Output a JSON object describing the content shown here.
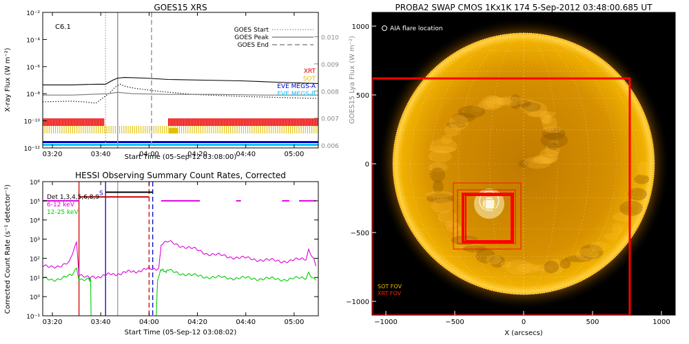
{
  "chart_data": [
    {
      "type": "line",
      "title": "GOES15 XRS",
      "xlabel": "Start Time (05-Sep-12 03:08:00)",
      "ylabel": "X-ray Flux (W m⁻²)",
      "ylabel_right": "GOES15 Lya Flux (W m⁻²)",
      "annotation": "C6.1",
      "xlim": [
        8,
        122
      ],
      "xticks": [
        {
          "v": 12,
          "label": "03:20"
        },
        {
          "v": 32,
          "label": "03:40"
        },
        {
          "v": 52,
          "label": "04:00"
        },
        {
          "v": 72,
          "label": "04:20"
        },
        {
          "v": 92,
          "label": "04:40"
        },
        {
          "v": 112,
          "label": "05:00"
        }
      ],
      "ylog": true,
      "ylim_exp": [
        -12,
        -2
      ],
      "yticks": [
        {
          "e": -12,
          "label": "10⁻¹²"
        },
        {
          "e": -10,
          "label": "10⁻¹⁰"
        },
        {
          "e": -8,
          "label": "10⁻⁸"
        },
        {
          "e": -6,
          "label": "10⁻⁶"
        },
        {
          "e": -4,
          "label": "10⁻⁴"
        },
        {
          "e": -2,
          "label": "10⁻²"
        }
      ],
      "yticks_right": [
        {
          "e": -11.8,
          "label": "0.006"
        },
        {
          "e": -9.8,
          "label": "0.007"
        },
        {
          "e": -7.8,
          "label": "0.008"
        },
        {
          "e": -5.8,
          "label": "0.009"
        },
        {
          "e": -3.8,
          "label": "0.010"
        }
      ],
      "legend": [
        {
          "label": "GOES Start",
          "style": "dotted",
          "color": "#888888"
        },
        {
          "label": "GOES Peak",
          "style": "solid",
          "color": "#888888"
        },
        {
          "label": "GOES End",
          "style": "dashed",
          "color": "#888888"
        }
      ],
      "instrument_labels": [
        {
          "label": "XRT",
          "color": "#dd0000"
        },
        {
          "label": "SOT",
          "color": "#e0c000"
        },
        {
          "label": "EVE MEGS-A",
          "color": "#0000cc"
        },
        {
          "label": "EVE MEGS-B",
          "color": "#00c8ff"
        }
      ],
      "vlines": [
        {
          "x": 34,
          "style": "dotted",
          "color": "#999999"
        },
        {
          "x": 39,
          "style": "solid",
          "color": "#999999"
        },
        {
          "x": 53,
          "style": "dashed",
          "color": "#999999"
        }
      ],
      "series": [
        {
          "color": "#000000",
          "style": "solid",
          "points": [
            [
              8,
              -7.35
            ],
            [
              20,
              -7.35
            ],
            [
              30,
              -7.3
            ],
            [
              34,
              -7.3
            ],
            [
              37,
              -7.0
            ],
            [
              39,
              -6.85
            ],
            [
              42,
              -6.8
            ],
            [
              50,
              -6.85
            ],
            [
              60,
              -6.95
            ],
            [
              75,
              -7.0
            ],
            [
              90,
              -7.05
            ],
            [
              105,
              -7.15
            ],
            [
              122,
              -7.25
            ]
          ]
        },
        {
          "color": "#000000",
          "style": "dotted",
          "points": [
            [
              8,
              -8.6
            ],
            [
              20,
              -8.55
            ],
            [
              25,
              -8.6
            ],
            [
              30,
              -8.7
            ],
            [
              33,
              -8.3
            ],
            [
              36,
              -7.9
            ],
            [
              38,
              -7.5
            ],
            [
              40,
              -7.3
            ],
            [
              42,
              -7.45
            ],
            [
              46,
              -7.6
            ],
            [
              55,
              -7.8
            ],
            [
              70,
              -8.05
            ],
            [
              90,
              -8.2
            ],
            [
              110,
              -8.3
            ],
            [
              122,
              -8.35
            ]
          ]
        },
        {
          "color": "#777777",
          "style": "solid",
          "points": [
            [
              8,
              -8.1
            ],
            [
              20,
              -8.1
            ],
            [
              35,
              -8.0
            ],
            [
              39,
              -7.9
            ],
            [
              45,
              -8.0
            ],
            [
              60,
              -8.05
            ],
            [
              80,
              -8.05
            ],
            [
              100,
              -8.1
            ],
            [
              122,
              -8.1
            ]
          ]
        }
      ],
      "coverage": [
        {
          "name": "XRT",
          "color": "#ee0000",
          "intervals": [
            [
              8,
              33.5
            ],
            [
              60,
              122
            ]
          ]
        },
        {
          "name": "SOT",
          "color": "#e0c000",
          "intervals": [
            [
              8,
              122
            ]
          ]
        },
        {
          "name": "EVE MEGS-A",
          "color": "#0000cc",
          "intervals": [
            [
              8,
              122
            ]
          ]
        },
        {
          "name": "EVE MEGS-B",
          "color": "#00c8ff",
          "intervals": [
            [
              8,
              122
            ]
          ]
        }
      ]
    },
    {
      "type": "line",
      "title": "HESSI Observing Summary Count Rates, Corrected",
      "xlabel": "Start Time (05-Sep-12 03:08:02)",
      "ylabel": "Corrected Count Rate (s⁻¹ detector⁻¹)",
      "xlim": [
        8,
        122
      ],
      "xticks": [
        {
          "v": 12,
          "label": "03:20"
        },
        {
          "v": 32,
          "label": "03:40"
        },
        {
          "v": 52,
          "label": "04:00"
        },
        {
          "v": 72,
          "label": "04:20"
        },
        {
          "v": 92,
          "label": "04:40"
        },
        {
          "v": 112,
          "label": "05:00"
        }
      ],
      "ylog": true,
      "ylim_exp": [
        -1,
        6
      ],
      "yticks": [
        {
          "e": -1,
          "label": "10⁻¹"
        },
        {
          "e": 0,
          "label": "10⁰"
        },
        {
          "e": 1,
          "label": "10¹"
        },
        {
          "e": 2,
          "label": "10²"
        },
        {
          "e": 3,
          "label": "10³"
        },
        {
          "e": 4,
          "label": "10⁴"
        },
        {
          "e": 5,
          "label": "10⁵"
        },
        {
          "e": 6,
          "label": "10⁶"
        }
      ],
      "legend": [
        {
          "label": "Det 1,3,4,5,6,8,9",
          "color": "#000000"
        },
        {
          "label": "6-12 keV",
          "color": "#dd00dd"
        },
        {
          "label": "12-25 keV",
          "color": "#00cc00"
        }
      ],
      "flag_label": "S",
      "vlines": [
        {
          "x": 23,
          "style": "solid",
          "color": "#cc0000"
        },
        {
          "x": 34,
          "style": "solid",
          "color": "#0000cc"
        },
        {
          "x": 39,
          "style": "solid",
          "color": "#999999"
        },
        {
          "x": 52,
          "style": "dashed",
          "color": "#cc0000"
        },
        {
          "x": 53.5,
          "style": "dashed",
          "color": "#0000cc"
        }
      ],
      "series": [
        {
          "name": "6-12 keV",
          "color": "#dd00dd",
          "points": [
            [
              8,
              1.55
            ],
            [
              12,
              1.6
            ],
            [
              16,
              1.6
            ],
            [
              19,
              1.75
            ],
            [
              21,
              2.5
            ],
            [
              22,
              2.85
            ],
            [
              23,
              1.2
            ],
            [
              27,
              1.0
            ],
            [
              27.8,
              1.0
            ],
            [
              56,
              1.5
            ],
            [
              57,
              2.75
            ],
            [
              60,
              2.85
            ],
            [
              64,
              2.7
            ],
            [
              70,
              2.5
            ],
            [
              76,
              2.25
            ],
            [
              84,
              2.1
            ],
            [
              92,
              2.0
            ],
            [
              100,
              1.9
            ],
            [
              110,
              1.85
            ],
            [
              117,
              2.0
            ],
            [
              118,
              2.5
            ],
            [
              120,
              2.0
            ],
            [
              121,
              1.6
            ]
          ]
        },
        {
          "name": "12-25 keV",
          "color": "#00cc00",
          "points": [
            [
              8,
              0.95
            ],
            [
              12,
              0.9
            ],
            [
              16,
              0.95
            ],
            [
              20,
              1.1
            ],
            [
              22,
              1.5
            ],
            [
              23,
              0.95
            ],
            [
              27,
              0.9
            ],
            [
              27.8,
              0.9
            ],
            [
              28,
              -1
            ],
            [
              55,
              -1
            ],
            [
              55.5,
              0.9
            ],
            [
              56.5,
              1.35
            ],
            [
              60,
              1.35
            ],
            [
              64,
              1.25
            ],
            [
              70,
              1.1
            ],
            [
              80,
              1.0
            ],
            [
              95,
              0.95
            ],
            [
              110,
              0.9
            ],
            [
              117,
              1.0
            ],
            [
              118,
              1.3
            ],
            [
              120,
              0.95
            ],
            [
              121,
              0.85
            ]
          ]
        }
      ],
      "attenuator_segments": [
        {
          "color": "#000000",
          "y": 5.45,
          "x": [
            34,
            53.5
          ]
        },
        {
          "color": "#cc0000",
          "y": 5.2,
          "x": [
            23,
            52
          ]
        },
        {
          "color": "#dd00dd",
          "y": 5.0,
          "x": [
            8,
            23
          ]
        },
        {
          "color": "#dd00dd",
          "y": 5.0,
          "x": [
            57,
            73
          ]
        },
        {
          "color": "#dd00dd",
          "y": 5.0,
          "x": [
            88,
            90
          ]
        },
        {
          "color": "#dd00dd",
          "y": 5.0,
          "x": [
            107,
            110
          ]
        },
        {
          "color": "#dd00dd",
          "y": 5.0,
          "x": [
            114,
            121
          ]
        }
      ]
    },
    {
      "type": "scatter",
      "title": "PROBA2 SWAP CMOS 1Kx1K 174   5-Sep-2012 03:48:00.685 UT",
      "xlabel": "X (arcsecs)",
      "ylabel": "",
      "xlim": [
        -1100,
        1100
      ],
      "ylim": [
        -1100,
        1100
      ],
      "xticks": [
        {
          "v": -1000,
          "label": "−1000"
        },
        {
          "v": -500,
          "label": "−500"
        },
        {
          "v": 0,
          "label": "0"
        },
        {
          "v": 500,
          "label": "500"
        },
        {
          "v": 1000,
          "label": "1000"
        }
      ],
      "yticks": [
        {
          "v": -1000,
          "label": "−1000"
        },
        {
          "v": -500,
          "label": "−500"
        },
        {
          "v": 0,
          "label": "0"
        },
        {
          "v": 500,
          "label": "500"
        },
        {
          "v": 1000,
          "label": "1000"
        }
      ],
      "annotation": "AIA flare location",
      "solar_radius": 950,
      "legend": [
        {
          "label": "SOT FOV",
          "color": "#e8c000"
        },
        {
          "label": "XRT FOV",
          "color": "#ff2200"
        }
      ],
      "flare_location": [
        -250,
        -290
      ],
      "fov_boxes": [
        {
          "color": "#ff0000",
          "x": [
            -1100,
            770
          ],
          "y": [
            -1100,
            620
          ],
          "width": 3
        },
        {
          "color": "#ff1000",
          "x": [
            -510,
            -20
          ],
          "y": [
            -620,
            -140
          ],
          "width": 1
        },
        {
          "color": "#ff1000",
          "x": [
            -480,
            -60
          ],
          "y": [
            -580,
            -190
          ],
          "width": 1
        },
        {
          "color": "#ff0000",
          "x": [
            -440,
            -80
          ],
          "y": [
            -570,
            -220
          ],
          "width": 4
        },
        {
          "color": "#ff0000",
          "x": [
            -420,
            -90
          ],
          "y": [
            -560,
            -230
          ],
          "width": 2
        },
        {
          "color": "#e8c000",
          "x": [
            -280,
            -210
          ],
          "y": [
            -330,
            -260
          ],
          "width": 1
        }
      ]
    }
  ]
}
